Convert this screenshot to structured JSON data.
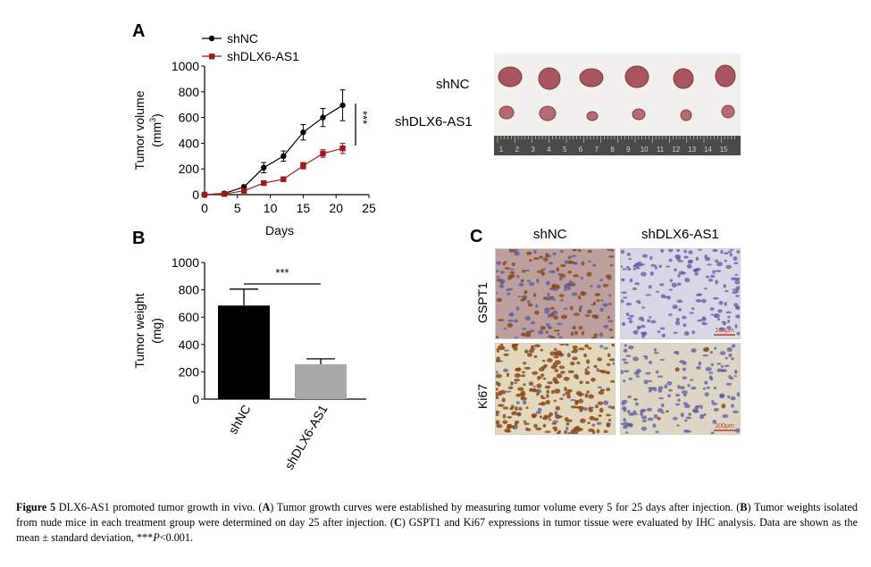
{
  "panel_labels": {
    "a": "A",
    "b": "B",
    "c": "C"
  },
  "caption": {
    "figure_label": "Figure 5",
    "lead": "DLX6-AS1 promoted tumor growth in vivo. (",
    "a": "A",
    "text_a": ") Tumor growth curves were established by measuring tumor volume every 5 for 25 days after injection. (",
    "b": "B",
    "text_b": ") Tumor weights isolated from nude mice in each treatment group were determined on day 25 after injection. (",
    "c": "C",
    "text_c": ") GSPT1 and Ki67 expressions in tumor tissue were evaluated by IHC analysis. Data are shown as the mean ± standard deviation, ***",
    "p": "P",
    "tail": "<0.001."
  },
  "tumor_photo": {
    "row_labels": [
      "shNC",
      "shDLX6-AS1"
    ],
    "ruler_numbers": [
      "1",
      "2",
      "3",
      "4",
      "5",
      "6",
      "7",
      "8",
      "9",
      "10",
      "11",
      "12",
      "13",
      "14",
      "15"
    ],
    "colors": {
      "background": "#f1f0ec",
      "tumor_large": "#a8555f",
      "tumor_small": "#b66a72",
      "ruler": "#4a4a46"
    }
  },
  "ihc": {
    "columns": [
      "shNC",
      "shDLX6-AS1"
    ],
    "rows": [
      "GSPT1",
      "Ki67"
    ],
    "scale_bar": "100μm",
    "colors": {
      "brown": "#a9733f",
      "blue": "#5a5aa0",
      "bg_gspt1": "#c8b9cf",
      "bg_ki67": "#e4d8bc"
    }
  },
  "chart_data": [
    {
      "type": "line",
      "panel": "A",
      "xlabel": "Days",
      "ylabel": "Tumor volume",
      "ylabel_unit": "(mm",
      "ylabel_sup": "3",
      "ylabel_close": ")",
      "xlim": [
        0,
        25
      ],
      "ylim": [
        0,
        1000
      ],
      "xticks": [
        "0",
        "5",
        "10",
        "15",
        "20",
        "25"
      ],
      "yticks": [
        "0",
        "200",
        "400",
        "600",
        "800",
        "1000"
      ],
      "legend_position": "top-left",
      "significance": "***",
      "series": [
        {
          "name": "shNC",
          "marker": "circle",
          "color": "#000000",
          "x": [
            0,
            3,
            6,
            9,
            12,
            15,
            18,
            21
          ],
          "y": [
            0,
            10,
            60,
            210,
            300,
            485,
            600,
            695
          ],
          "err": [
            0,
            5,
            15,
            40,
            40,
            60,
            70,
            120
          ]
        },
        {
          "name": "shDLX6-AS1",
          "marker": "square",
          "color": "#9b1b1b",
          "x": [
            0,
            3,
            6,
            9,
            12,
            15,
            18,
            21
          ],
          "y": [
            0,
            5,
            30,
            90,
            120,
            225,
            320,
            360
          ],
          "err": [
            0,
            3,
            8,
            10,
            15,
            25,
            30,
            40
          ]
        }
      ]
    },
    {
      "type": "bar",
      "panel": "B",
      "ylabel": "Tumor weight",
      "ylabel_unit": "(mg)",
      "ylim": [
        0,
        1000
      ],
      "yticks": [
        "0",
        "200",
        "400",
        "600",
        "800",
        "1000"
      ],
      "categories": [
        "shNC",
        "shDLX6-AS1"
      ],
      "values": [
        685,
        255
      ],
      "err": [
        120,
        40
      ],
      "colors": [
        "#000000",
        "#a8a8a8"
      ],
      "significance": "***"
    }
  ]
}
